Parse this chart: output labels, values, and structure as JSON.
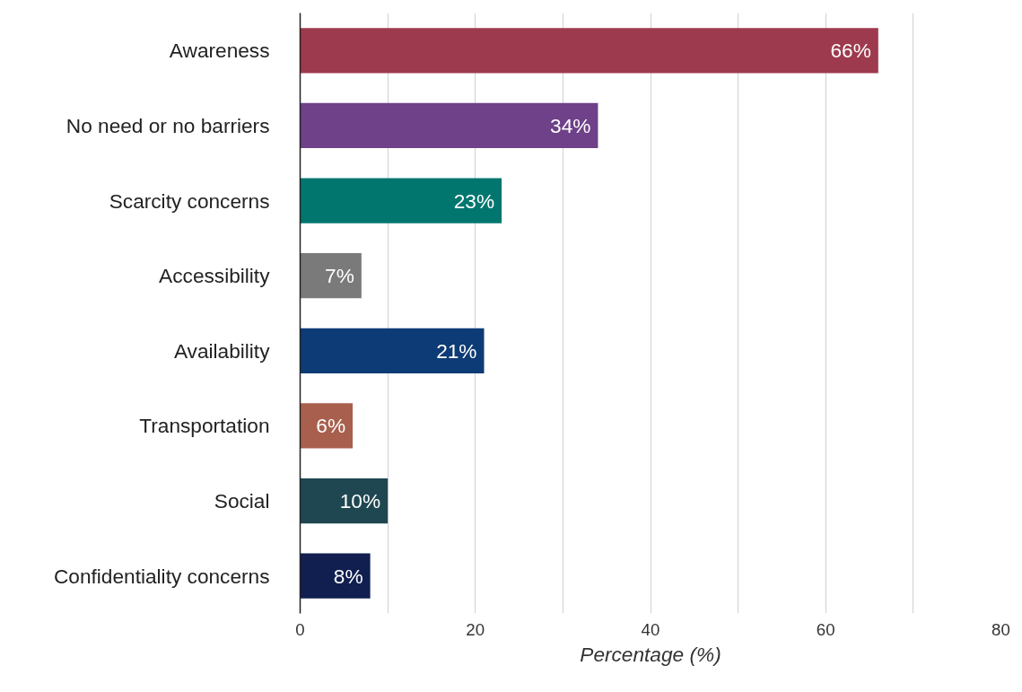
{
  "chart_data": {
    "type": "bar",
    "orientation": "horizontal",
    "xlabel": "Percentage (%)",
    "categories": [
      "Awareness",
      "No need or no barriers",
      "Scarcity concerns",
      "Accessibility",
      "Availability",
      "Transportation",
      "Social",
      "Confidentiality concerns"
    ],
    "values": [
      66,
      34,
      23,
      7,
      21,
      6,
      10,
      8
    ],
    "colors": [
      "#9e3a4e",
      "#6e4189",
      "#00766f",
      "#7a7a7a",
      "#0d3b75",
      "#a85f4e",
      "#1f4751",
      "#101f4f"
    ],
    "value_labels": [
      "66%",
      "34%",
      "23%",
      "7%",
      "21%",
      "6%",
      "10%",
      "8%"
    ],
    "xlim": [
      0,
      80
    ],
    "xticks": [
      0,
      {
        "value": 10,
        "label": null
      },
      20,
      {
        "value": 30,
        "label": null
      },
      40,
      {
        "value": 50,
        "label": null
      },
      60,
      {
        "value": 70,
        "label": null
      },
      80
    ],
    "grid": "x"
  }
}
